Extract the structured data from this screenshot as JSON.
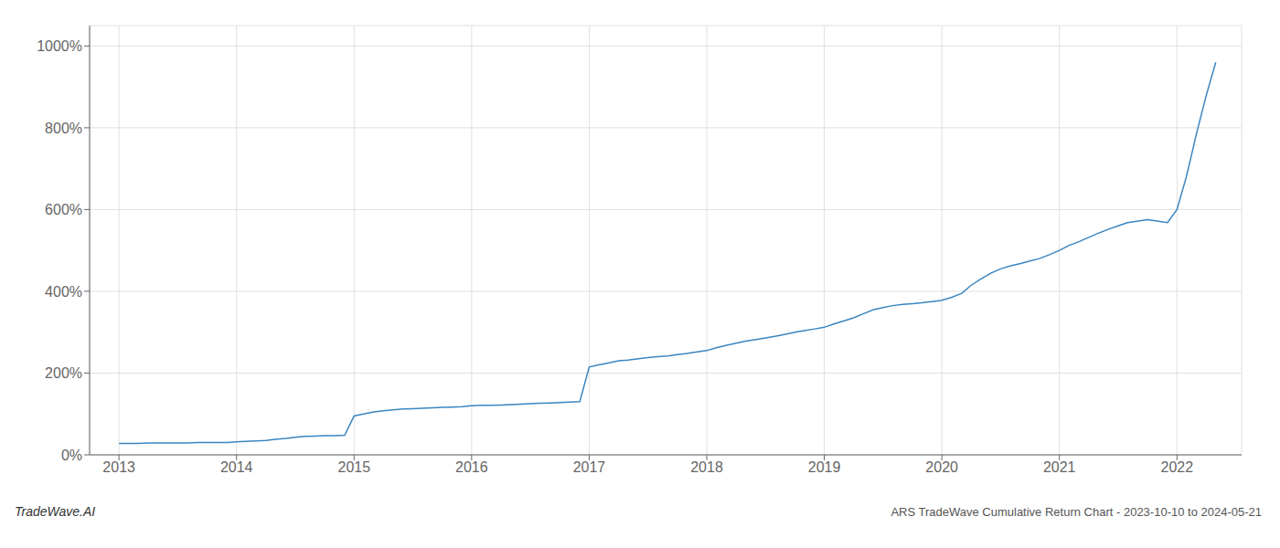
{
  "chart_data": {
    "type": "line",
    "title": "ARS TradeWave Cumulative Return Chart - 2023-10-10 to 2024-05-21",
    "annotations": [
      "TradeWave.AI"
    ],
    "color": "#3a85c0",
    "x": [
      2013.0,
      2013.08,
      2013.17,
      2013.25,
      2013.33,
      2013.42,
      2013.5,
      2013.58,
      2013.67,
      2013.75,
      2013.83,
      2013.92,
      2014.0,
      2014.08,
      2014.17,
      2014.25,
      2014.33,
      2014.42,
      2014.5,
      2014.58,
      2014.67,
      2014.75,
      2014.83,
      2014.92,
      2015.0,
      2015.08,
      2015.17,
      2015.25,
      2015.33,
      2015.42,
      2015.5,
      2015.58,
      2015.67,
      2015.75,
      2015.83,
      2015.92,
      2016.0,
      2016.08,
      2016.17,
      2016.25,
      2016.33,
      2016.42,
      2016.5,
      2016.58,
      2016.67,
      2016.75,
      2016.83,
      2016.92,
      2017.0,
      2017.08,
      2017.17,
      2017.25,
      2017.33,
      2017.42,
      2017.5,
      2017.58,
      2017.67,
      2017.75,
      2017.83,
      2017.92,
      2018.0,
      2018.08,
      2018.17,
      2018.25,
      2018.33,
      2018.42,
      2018.5,
      2018.58,
      2018.67,
      2018.75,
      2018.83,
      2018.92,
      2019.0,
      2019.08,
      2019.17,
      2019.25,
      2019.33,
      2019.42,
      2019.5,
      2019.58,
      2019.67,
      2019.75,
      2019.83,
      2019.92,
      2020.0,
      2020.08,
      2020.17,
      2020.25,
      2020.33,
      2020.42,
      2020.5,
      2020.58,
      2020.67,
      2020.75,
      2020.83,
      2020.92,
      2021.0,
      2021.08,
      2021.17,
      2021.25,
      2021.33,
      2021.42,
      2021.5,
      2021.58,
      2021.67,
      2021.75,
      2021.83,
      2021.92,
      2022.0,
      2022.08,
      2022.17,
      2022.25,
      2022.33
    ],
    "values": [
      28,
      28,
      28,
      29,
      29,
      29,
      29,
      29,
      30,
      30,
      30,
      30,
      32,
      33,
      34,
      35,
      38,
      40,
      43,
      45,
      46,
      47,
      47,
      48,
      95,
      100,
      105,
      108,
      110,
      112,
      113,
      114,
      115,
      116,
      117,
      118,
      120,
      121,
      121,
      122,
      123,
      124,
      125,
      126,
      127,
      128,
      129,
      130,
      215,
      220,
      225,
      230,
      232,
      235,
      238,
      240,
      242,
      245,
      248,
      252,
      255,
      262,
      268,
      273,
      278,
      282,
      286,
      290,
      295,
      300,
      304,
      308,
      312,
      320,
      328,
      335,
      345,
      355,
      360,
      365,
      368,
      370,
      372,
      375,
      378,
      385,
      395,
      415,
      430,
      445,
      455,
      462,
      468,
      474,
      480,
      490,
      500,
      512,
      522,
      532,
      542,
      552,
      560,
      568,
      572,
      575,
      572,
      568,
      600,
      680,
      790,
      880,
      960
    ],
    "xlim": [
      2012.75,
      2022.55
    ],
    "xticks": [
      2013,
      2014,
      2015,
      2016,
      2017,
      2018,
      2019,
      2020,
      2021,
      2022
    ],
    "ylim": [
      0,
      1050
    ],
    "yticks": [
      {
        "value": 0,
        "label": "0%"
      },
      {
        "value": 200,
        "label": "200%"
      },
      {
        "value": 400,
        "label": "400%"
      },
      {
        "value": 600,
        "label": "600%"
      },
      {
        "value": 800,
        "label": "800%"
      },
      {
        "value": 1000,
        "label": "1000%"
      }
    ],
    "grid": true
  }
}
